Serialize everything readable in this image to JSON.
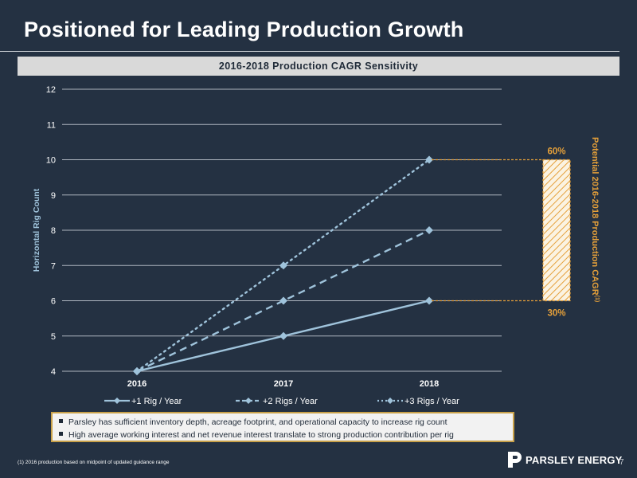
{
  "page": {
    "title": "Positioned for Leading Production Growth",
    "banner": "2016-2018 Production CAGR Sensitivity",
    "footnote": "(1) 2016 production based on midpoint of updated guidance range",
    "page_number": "7",
    "company": "PARSLEY ENERGY"
  },
  "notes": [
    "Parsley has sufficient inventory depth, acreage footprint, and operational capacity to increase rig count",
    "High average working interest and net revenue interest translate to strong production contribution per rig"
  ],
  "chart_data": {
    "type": "line",
    "categories": [
      "2016",
      "2017",
      "2018"
    ],
    "ylabel": "Horizontal Rig Count",
    "ylim": [
      4,
      12
    ],
    "yticks": [
      "4",
      "5",
      "6",
      "7",
      "8",
      "9",
      "10",
      "11",
      "12"
    ],
    "grid": true,
    "legend_position": "bottom",
    "series": [
      {
        "name": "+1 Rig / Year",
        "values": [
          4,
          5,
          6
        ],
        "style": "solid"
      },
      {
        "name": "+2 Rigs / Year",
        "values": [
          4,
          6,
          8
        ],
        "style": "dashed"
      },
      {
        "name": "+3 Rigs / Year",
        "values": [
          4,
          7,
          10
        ],
        "style": "dotted"
      }
    ],
    "annotation": {
      "label": "Potential 2016-2018 Production CAGR",
      "superscript": "(1)",
      "top_label": "60%",
      "bottom_label": "30%",
      "top_value": 10,
      "bottom_value": 6
    },
    "colors": {
      "series": "#9fc3db",
      "grid": "#aeb5bf",
      "accent": "#e5a03a",
      "text": "#ffffff"
    }
  }
}
